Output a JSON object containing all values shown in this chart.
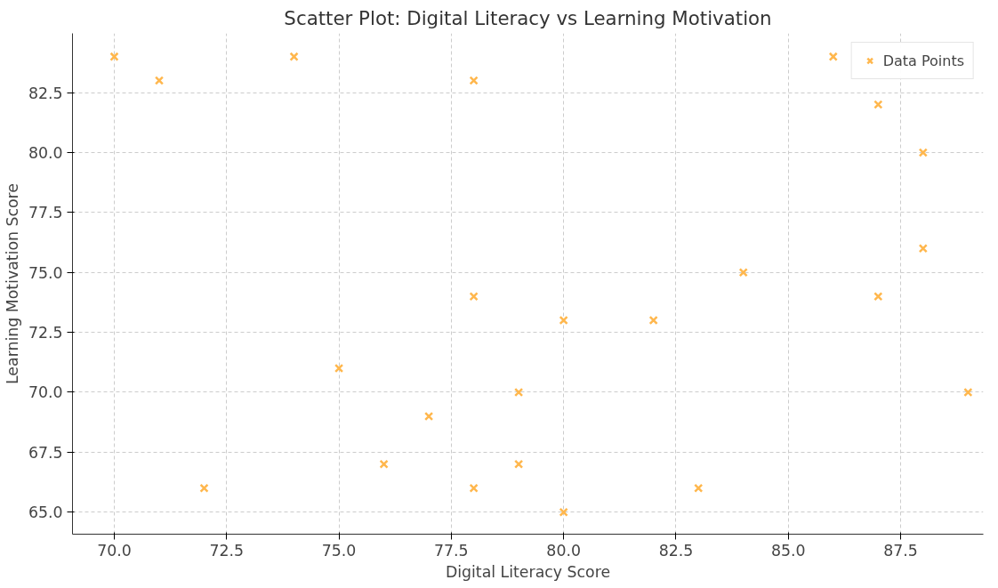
{
  "chart_data": {
    "type": "scatter",
    "title": "Scatter Plot: Digital Literacy vs Learning Motivation",
    "xlabel": "Digital Literacy Score",
    "ylabel": "Learning Motivation Score",
    "x": [
      70,
      71,
      72,
      74,
      75,
      76,
      77,
      78,
      78,
      78,
      79,
      79,
      80,
      80,
      82,
      83,
      84,
      86,
      87,
      87,
      88,
      88,
      89
    ],
    "series": [
      {
        "name": "Data Points",
        "color": "#ffb74d",
        "values": [
          84,
          83,
          66,
          84,
          71,
          67,
          69,
          83,
          74,
          66,
          70,
          67,
          73,
          65,
          73,
          66,
          75,
          84,
          82,
          74,
          80,
          76,
          70
        ]
      }
    ],
    "xlim": [
      69.07,
      89.34
    ],
    "ylim": [
      64.08,
      84.97
    ],
    "xticks": [
      {
        "value": 70,
        "label": "70.0"
      },
      72.5,
      {
        "value": 75,
        "label": "75.0"
      },
      77.5,
      {
        "value": 80,
        "label": "80.0"
      },
      82.5,
      {
        "value": 85,
        "label": "85.0"
      },
      87.5
    ],
    "yticks": [
      {
        "value": 65,
        "label": "65.0"
      },
      67.5,
      {
        "value": 70,
        "label": "70.0"
      },
      72.5,
      {
        "value": 75,
        "label": "75.0"
      },
      77.5,
      {
        "value": 80,
        "label": "80.0"
      },
      82.5
    ],
    "grid": true,
    "legend": "top right",
    "marker": "cross"
  }
}
